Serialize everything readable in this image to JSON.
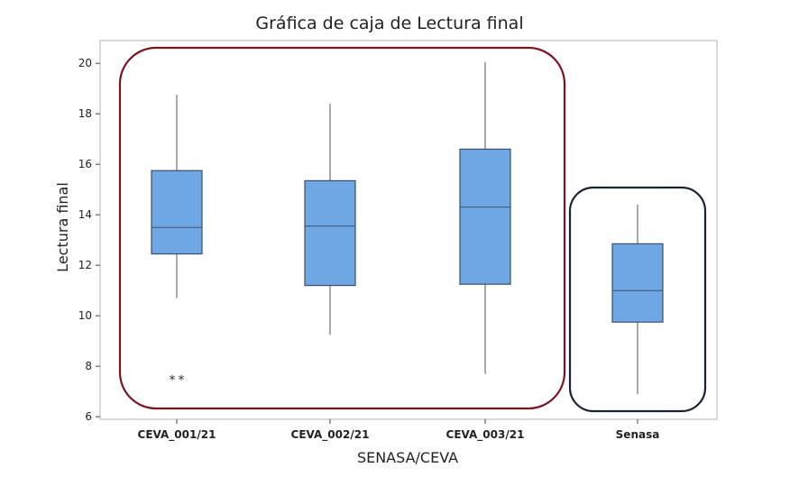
{
  "chart_data": {
    "type": "box",
    "title": "Gráfica de caja de Lectura final",
    "xlabel": "SENASA/CEVA",
    "ylabel": "Lectura final",
    "ylim": [
      5.9,
      20.9
    ],
    "yticks": [
      "6",
      "8",
      "10",
      "12",
      "14",
      "16",
      "18",
      "20"
    ],
    "categories": [
      "CEVA_001/21",
      "CEVA_002/21",
      "CEVA_003/21",
      "Senasa"
    ],
    "boxes": [
      {
        "category": "CEVA_001/21",
        "whisker_low": 10.7,
        "q1": 12.45,
        "median": 13.5,
        "q3": 15.75,
        "whisker_high": 18.75,
        "outliers": [
          7.5,
          7.5
        ]
      },
      {
        "category": "CEVA_002/21",
        "whisker_low": 9.25,
        "q1": 11.2,
        "median": 13.55,
        "q3": 15.35,
        "whisker_high": 18.4,
        "outliers": []
      },
      {
        "category": "CEVA_003/21",
        "whisker_low": 7.7,
        "q1": 11.25,
        "median": 14.3,
        "q3": 16.6,
        "whisker_high": 20.05,
        "outliers": []
      },
      {
        "category": "Senasa",
        "whisker_low": 6.9,
        "q1": 9.75,
        "median": 11.0,
        "q3": 12.85,
        "whisker_high": 14.4,
        "outliers": []
      }
    ],
    "grid": false,
    "colors": {
      "box_fill": "#6ea7e3",
      "box_stroke": "#3b4f6b",
      "group1_outline": "#7a1420",
      "group2_outline": "#1b2433"
    }
  }
}
